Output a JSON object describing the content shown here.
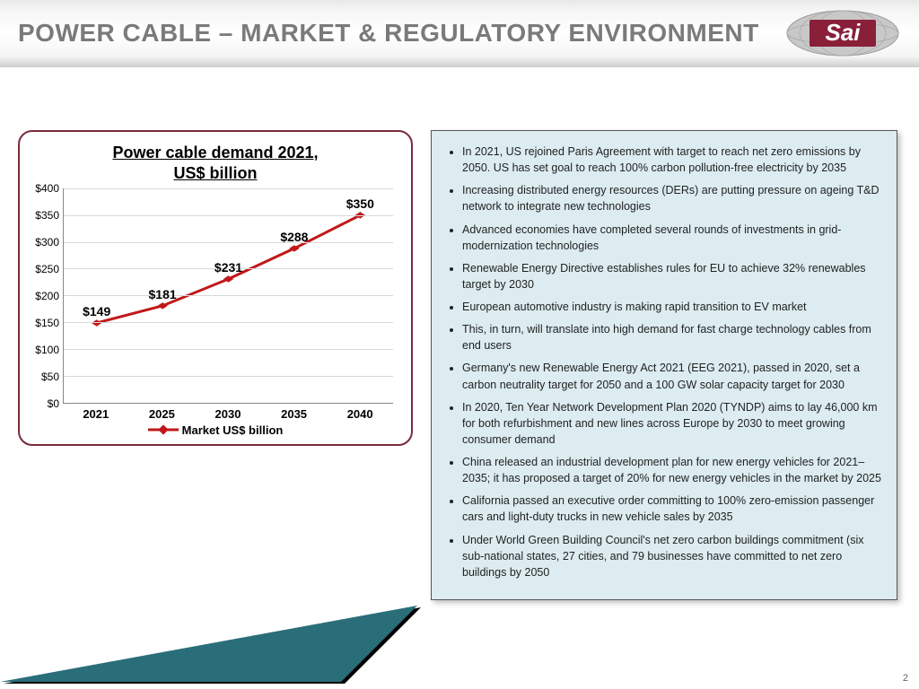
{
  "header": {
    "title": "POWER CABLE – MARKET & REGULATORY ENVIRONMENT",
    "logo_text": "Sai",
    "logo_bg": "#8a1f3a",
    "logo_globe": "#b8b8b8"
  },
  "chart": {
    "type": "line",
    "title_line1": "Power cable demand 2021,",
    "title_line2": "US$ billion",
    "title_fontsize": 18,
    "border_color": "#7a2a3a",
    "categories": [
      "2021",
      "2025",
      "2030",
      "2035",
      "2040"
    ],
    "values": [
      149,
      181,
      231,
      288,
      350
    ],
    "value_labels": [
      "$149",
      "$181",
      "$231",
      "$288",
      "$350"
    ],
    "ylim": [
      0,
      400
    ],
    "ytick_step": 50,
    "yticks": [
      "$0",
      "$50",
      "$100",
      "$150",
      "$200",
      "$250",
      "$300",
      "$350",
      "$400"
    ],
    "line_color": "#c0181a",
    "line_width": 3,
    "marker_style": "diamond",
    "marker_size": 9,
    "marker_color": "#c0181a",
    "grid_color": "#d8d8d8",
    "background_color": "#ffffff",
    "legend_label": "Market US$ billion",
    "label_fontsize": 14,
    "axis_fontsize": 12
  },
  "bullets": {
    "bg": "#dcecf0",
    "border": "#555555",
    "fontsize": 12.5,
    "items": [
      "In 2021, US rejoined Paris Agreement with target to reach net zero emissions by 2050. US has set goal to reach 100% carbon pollution-free electricity by 2035",
      "Increasing distributed energy resources (DERs) are putting pressure on ageing T&D network to integrate new technologies",
      "Advanced economies have completed several rounds of investments in grid-modernization technologies",
      "Renewable Energy Directive establishes rules for EU to achieve 32% renewables target by 2030",
      "European automotive industry is making rapid transition to EV market",
      "This, in turn, will translate into high demand for fast charge technology cables from end users",
      "Germany's new Renewable Energy Act 2021 (EEG 2021), passed in 2020, set a carbon neutrality target for 2050 and a 100 GW solar capacity target for 2030",
      "In 2020, Ten Year Network Development Plan 2020 (TYNDP) aims to lay 46,000 km for both refurbishment and new lines across Europe by 2030 to meet growing consumer demand",
      "China released an industrial development plan for new energy vehicles for 2021–2035; it has proposed a target of 20% for new energy vehicles in the market by 2025",
      "California passed an executive order committing to 100% zero-emission passenger cars and light-duty trucks in new vehicle sales by 2035",
      "Under World Green Building Council's net zero carbon buildings commitment (six sub-national states, 27  cities, and 79  businesses have committed to net zero buildings by 2050"
    ]
  },
  "footer": {
    "triangle_color": "#2a6e7a",
    "page_number": "2"
  }
}
